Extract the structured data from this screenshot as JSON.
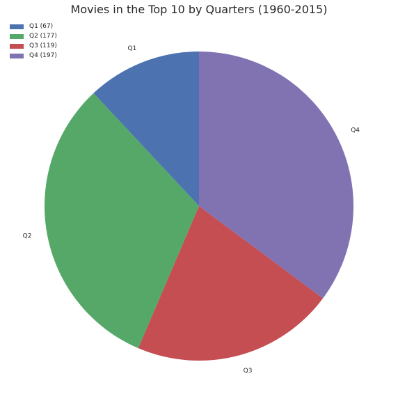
{
  "chart_data": {
    "type": "pie",
    "title": "Movies in the Top 10 by Quarters (1960-2015)",
    "slices": [
      {
        "label": "Q1",
        "legend": "Q1 (67)",
        "value": 67,
        "color": "#4c72b0"
      },
      {
        "label": "Q2",
        "legend": "Q2 (177)",
        "value": 177,
        "color": "#55a868"
      },
      {
        "label": "Q3",
        "legend": "Q3 (119)",
        "value": 119,
        "color": "#c44e52"
      },
      {
        "label": "Q4",
        "legend": "Q4 (197)",
        "value": 197,
        "color": "#8172b2"
      }
    ],
    "legend_position": "upper-left"
  }
}
